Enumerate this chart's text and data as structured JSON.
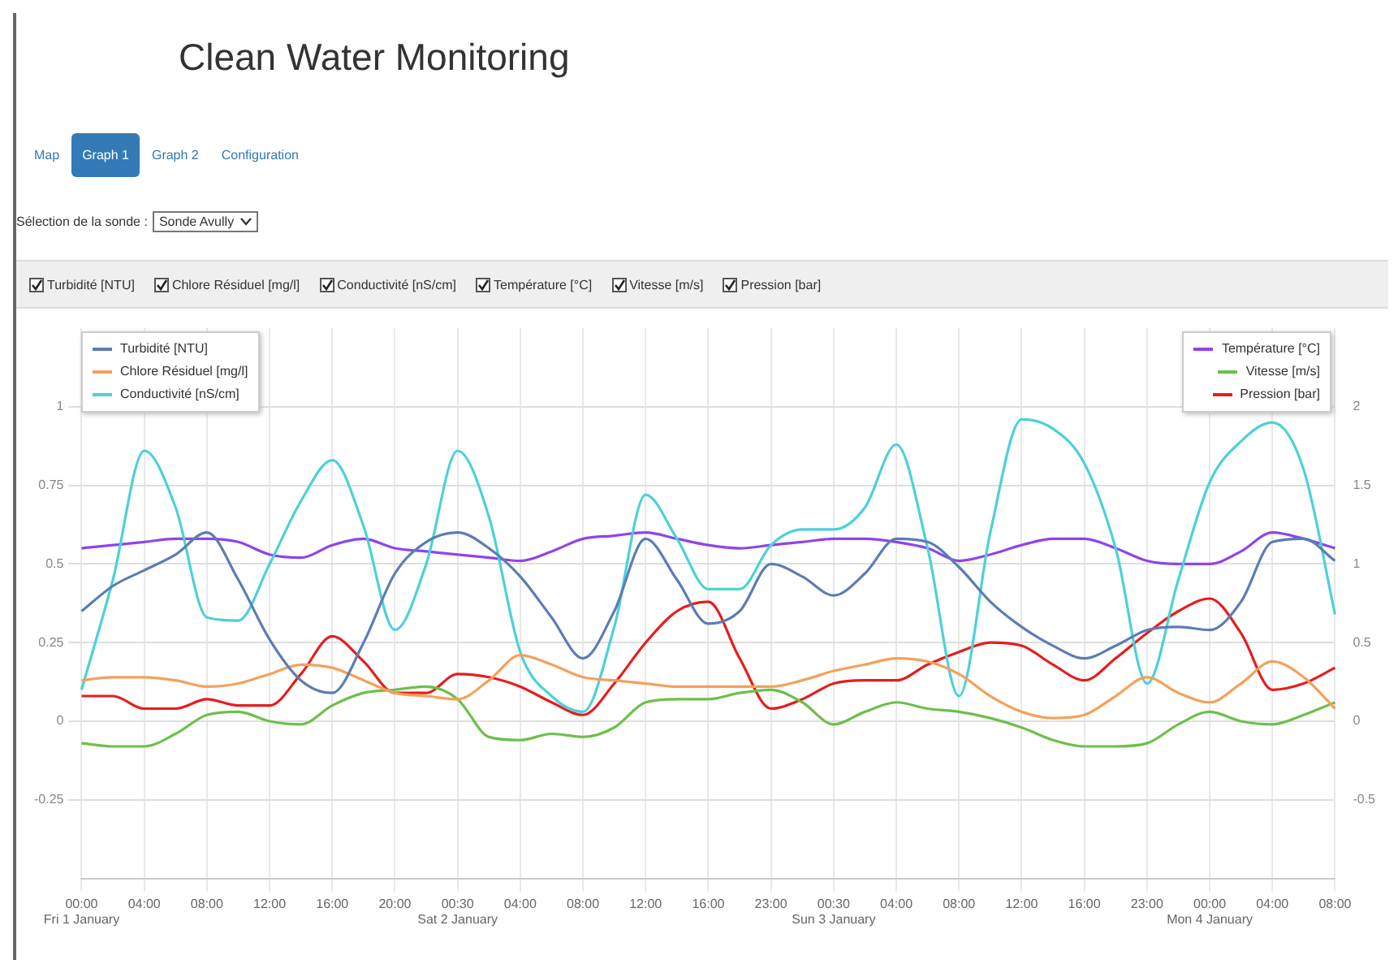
{
  "chart_data": {
    "type": "line",
    "title": "Clean Water Monitoring",
    "annotations": [
      "Map",
      "Graph 1",
      "Graph 2",
      "Configuration",
      "Sélection de la sonde :",
      "Sonde Avully"
    ],
    "categories": [
      "00:00\nFri 1 January",
      null,
      "04:00",
      null,
      "08:00",
      null,
      "12:00",
      null,
      "16:00",
      null,
      "20:00",
      null,
      "00:30\nSat 2 January",
      null,
      "04:00",
      null,
      "08:00",
      null,
      "12:00",
      null,
      "16:00",
      null,
      "23:00",
      null,
      "00:30\nSun 3 January",
      null,
      "04:00",
      null,
      "08:00",
      null,
      "12:00",
      null,
      "16:00",
      null,
      "23:00",
      null,
      "00:00\nMon 4 January",
      null,
      "04:00",
      null,
      "08:00"
    ],
    "series": [
      {
        "name": "Turbidité [NTU]",
        "color": "#5b7db5",
        "values": [
          0.35,
          0.43,
          0.48,
          0.53,
          0.6,
          0.45,
          0.26,
          0.13,
          0.09,
          0.25,
          0.47,
          0.57,
          0.6,
          0.55,
          0.46,
          0.33,
          0.2,
          0.35,
          0.58,
          0.45,
          0.31,
          0.35,
          0.5,
          0.46,
          0.4,
          0.47,
          0.58,
          0.57,
          0.49,
          0.38,
          0.3,
          0.24,
          0.2,
          0.24,
          0.29,
          0.3,
          0.29,
          0.38,
          0.57,
          0.58,
          0.51
        ]
      },
      {
        "name": "Chlore Résiduel [mg/l]",
        "color": "#f5a05a",
        "values": [
          0.13,
          0.14,
          0.14,
          0.13,
          0.11,
          0.12,
          0.15,
          0.18,
          0.17,
          0.13,
          0.09,
          0.08,
          0.07,
          0.13,
          0.21,
          0.18,
          0.14,
          0.13,
          0.12,
          0.11,
          0.11,
          0.11,
          0.11,
          0.13,
          0.16,
          0.18,
          0.2,
          0.19,
          0.15,
          0.08,
          0.03,
          0.01,
          0.02,
          0.08,
          0.14,
          0.09,
          0.06,
          0.12,
          0.19,
          0.14,
          0.04
        ]
      },
      {
        "name": "Conductivité [nS/cm]",
        "color": "#4dd0d9",
        "values": [
          0.1,
          0.45,
          0.86,
          0.68,
          0.33,
          0.32,
          0.5,
          0.7,
          0.83,
          0.62,
          0.29,
          0.5,
          0.86,
          0.65,
          0.22,
          0.08,
          0.03,
          0.3,
          0.72,
          0.58,
          0.42,
          0.42,
          0.56,
          0.61,
          0.61,
          0.68,
          0.88,
          0.55,
          0.08,
          0.6,
          0.96,
          0.93,
          0.82,
          0.55,
          0.12,
          0.45,
          0.76,
          0.89,
          0.95,
          0.8,
          0.34
        ]
      },
      {
        "name": "Température [°C]",
        "color": "#8e44ec",
        "axis": "y2",
        "values": [
          1.1,
          1.12,
          1.14,
          1.16,
          1.16,
          1.14,
          1.06,
          1.04,
          1.12,
          1.16,
          1.1,
          1.08,
          1.06,
          1.04,
          1.02,
          1.08,
          1.16,
          1.18,
          1.2,
          1.16,
          1.12,
          1.1,
          1.12,
          1.14,
          1.16,
          1.16,
          1.14,
          1.1,
          1.02,
          1.06,
          1.12,
          1.16,
          1.16,
          1.1,
          1.02,
          1.0,
          1.0,
          1.08,
          1.2,
          1.16,
          1.1
        ]
      },
      {
        "name": "Vitesse [m/s]",
        "color": "#6cc04a",
        "axis": "y2",
        "values": [
          -0.14,
          -0.16,
          -0.16,
          -0.08,
          0.04,
          0.06,
          0.0,
          -0.02,
          0.1,
          0.18,
          0.2,
          0.22,
          0.14,
          -0.1,
          -0.12,
          -0.08,
          -0.1,
          -0.04,
          0.12,
          0.14,
          0.14,
          0.18,
          0.2,
          0.12,
          -0.02,
          0.06,
          0.12,
          0.08,
          0.06,
          0.02,
          -0.04,
          -0.12,
          -0.16,
          -0.16,
          -0.14,
          -0.02,
          0.06,
          0.0,
          -0.02,
          0.04,
          0.12
        ]
      },
      {
        "name": "Pression [bar]",
        "color": "#e81c1c",
        "axis": "y2",
        "values": [
          0.16,
          0.16,
          0.08,
          0.08,
          0.14,
          0.1,
          0.1,
          0.3,
          0.54,
          0.38,
          0.18,
          0.18,
          0.3,
          0.28,
          0.22,
          0.12,
          0.04,
          0.24,
          0.5,
          0.7,
          0.76,
          0.4,
          0.08,
          0.14,
          0.24,
          0.26,
          0.26,
          0.36,
          0.44,
          0.5,
          0.48,
          0.36,
          0.26,
          0.4,
          0.56,
          0.7,
          0.78,
          0.56,
          0.2,
          0.24,
          0.34
        ]
      }
    ],
    "ylim": [
      -0.5,
      1.25
    ],
    "yticks": [
      -0.25,
      0,
      0.25,
      0.5,
      0.75,
      1
    ],
    "y2lim": [
      -1,
      2.5
    ],
    "y2ticks": [
      -0.5,
      0,
      0.5,
      1,
      1.5,
      2
    ],
    "grid": true,
    "legend": "top left",
    "marker": "none",
    "line_style": "solid"
  }
}
